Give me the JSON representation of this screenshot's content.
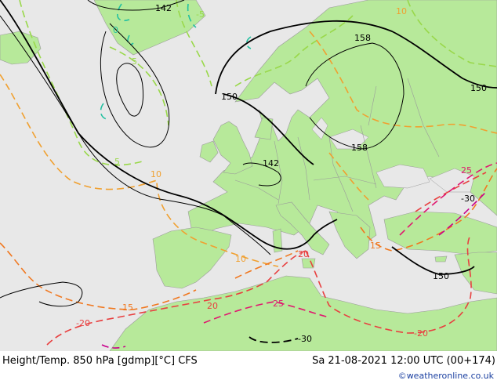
{
  "map": {
    "sea_color": "#e8e8e8",
    "land_color": "#b7e99a",
    "border_color": "#9a9a9a",
    "contour_labels": {
      "height": [
        "142",
        "150",
        "158",
        "158",
        "150",
        "142",
        "150"
      ],
      "temperature": [
        "10",
        "10",
        "10",
        "15",
        "15",
        "20",
        "20",
        "25",
        "25",
        "-30",
        "-20",
        "-20",
        "5",
        "5",
        "0",
        "-5"
      ]
    },
    "colors": {
      "height": "#000000",
      "t_neg": "#99d84a",
      "t_0": "#22c0a0",
      "t_10": "#f0a030",
      "t_15": "#f07820",
      "t_20": "#e84040",
      "t_25": "#e01870",
      "t_30": "#c8008c"
    }
  },
  "footer": {
    "title": "Height/Temp. 850 hPa [gdmp][°C] CFS",
    "datetime": "Sa 21-08-2021 12:00 UTC (00+174)",
    "credit": "©weatheronline.co.uk"
  }
}
